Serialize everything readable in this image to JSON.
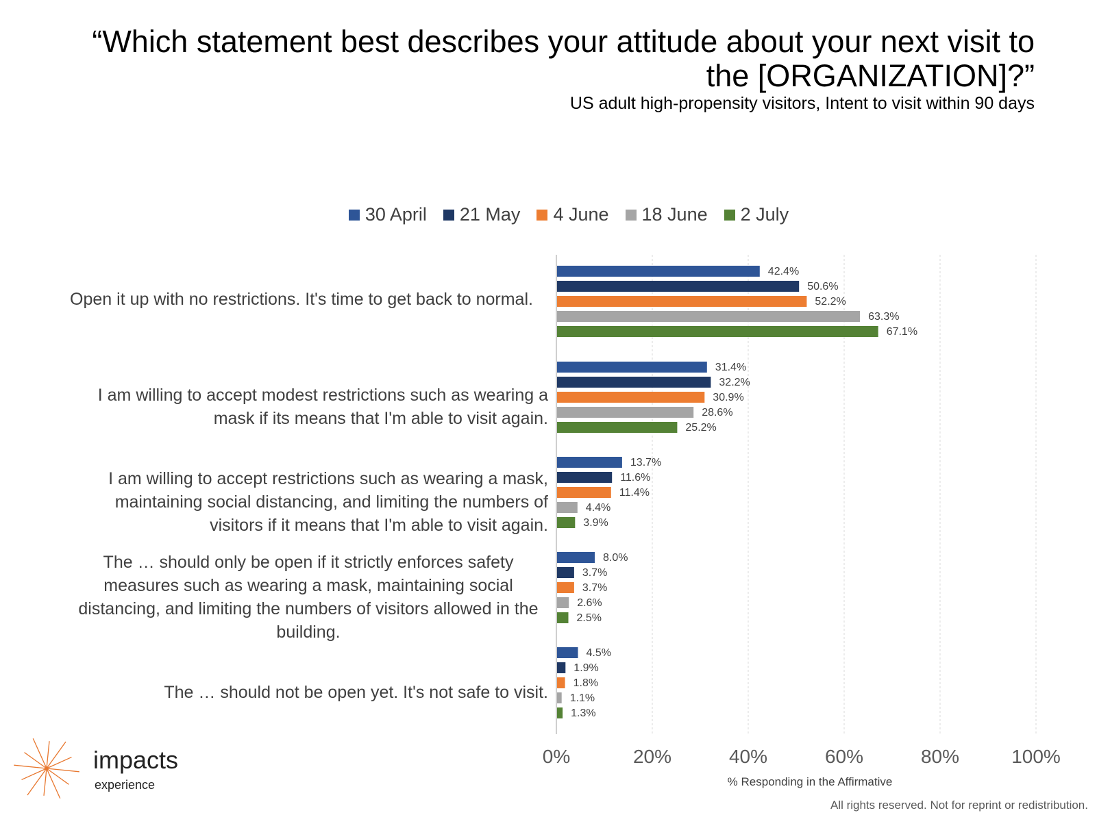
{
  "title": "“Which statement best describes your attitude about your next visit to the [ORGANIZATION]?”",
  "subtitle": "US adult high-propensity visitors, Intent to visit within 90 days",
  "logo": {
    "word": "impacts",
    "sub": "experience",
    "icon": "sunburst-icon",
    "color": "#E8772E"
  },
  "footer": "All rights reserved. Not for reprint or redistribution.",
  "chart_data": {
    "type": "bar",
    "orientation": "horizontal",
    "categories": [
      "Open it up with no restrictions. It's time to get back to normal.",
      "I am willing to accept modest restrictions such as wearing a mask if its means that I'm able to visit again.",
      "I am willing to accept restrictions such as wearing a mask, maintaining social distancing, and limiting the numbers of visitors if it means that I'm able to visit again.",
      "The … should only be open if it strictly enforces safety measures such as wearing a mask, maintaining social distancing, and limiting the numbers of visitors allowed in the building.",
      "The … should not be open yet. It's not safe to visit."
    ],
    "series": [
      {
        "name": "30 April",
        "color": "#2E5597",
        "values": [
          42.4,
          31.4,
          13.7,
          8.0,
          4.5
        ]
      },
      {
        "name": "21 May",
        "color": "#1F3864",
        "values": [
          50.6,
          32.2,
          11.6,
          3.7,
          1.9
        ]
      },
      {
        "name": "4 June",
        "color": "#ED7D31",
        "values": [
          52.2,
          30.9,
          11.4,
          3.7,
          1.8
        ]
      },
      {
        "name": "18 June",
        "color": "#A5A5A5",
        "values": [
          63.3,
          28.6,
          4.4,
          2.6,
          1.1
        ]
      },
      {
        "name": "2 July",
        "color": "#548235",
        "values": [
          67.1,
          25.2,
          3.9,
          2.5,
          1.3
        ]
      }
    ],
    "x_ticks": [
      "0%",
      "20%",
      "40%",
      "60%",
      "80%",
      "100%"
    ],
    "xlim": [
      0,
      100
    ],
    "xlabel": "% Responding in the Affirmative",
    "value_suffix": "%",
    "grid": "vertical dashed",
    "legend_position": "top"
  }
}
